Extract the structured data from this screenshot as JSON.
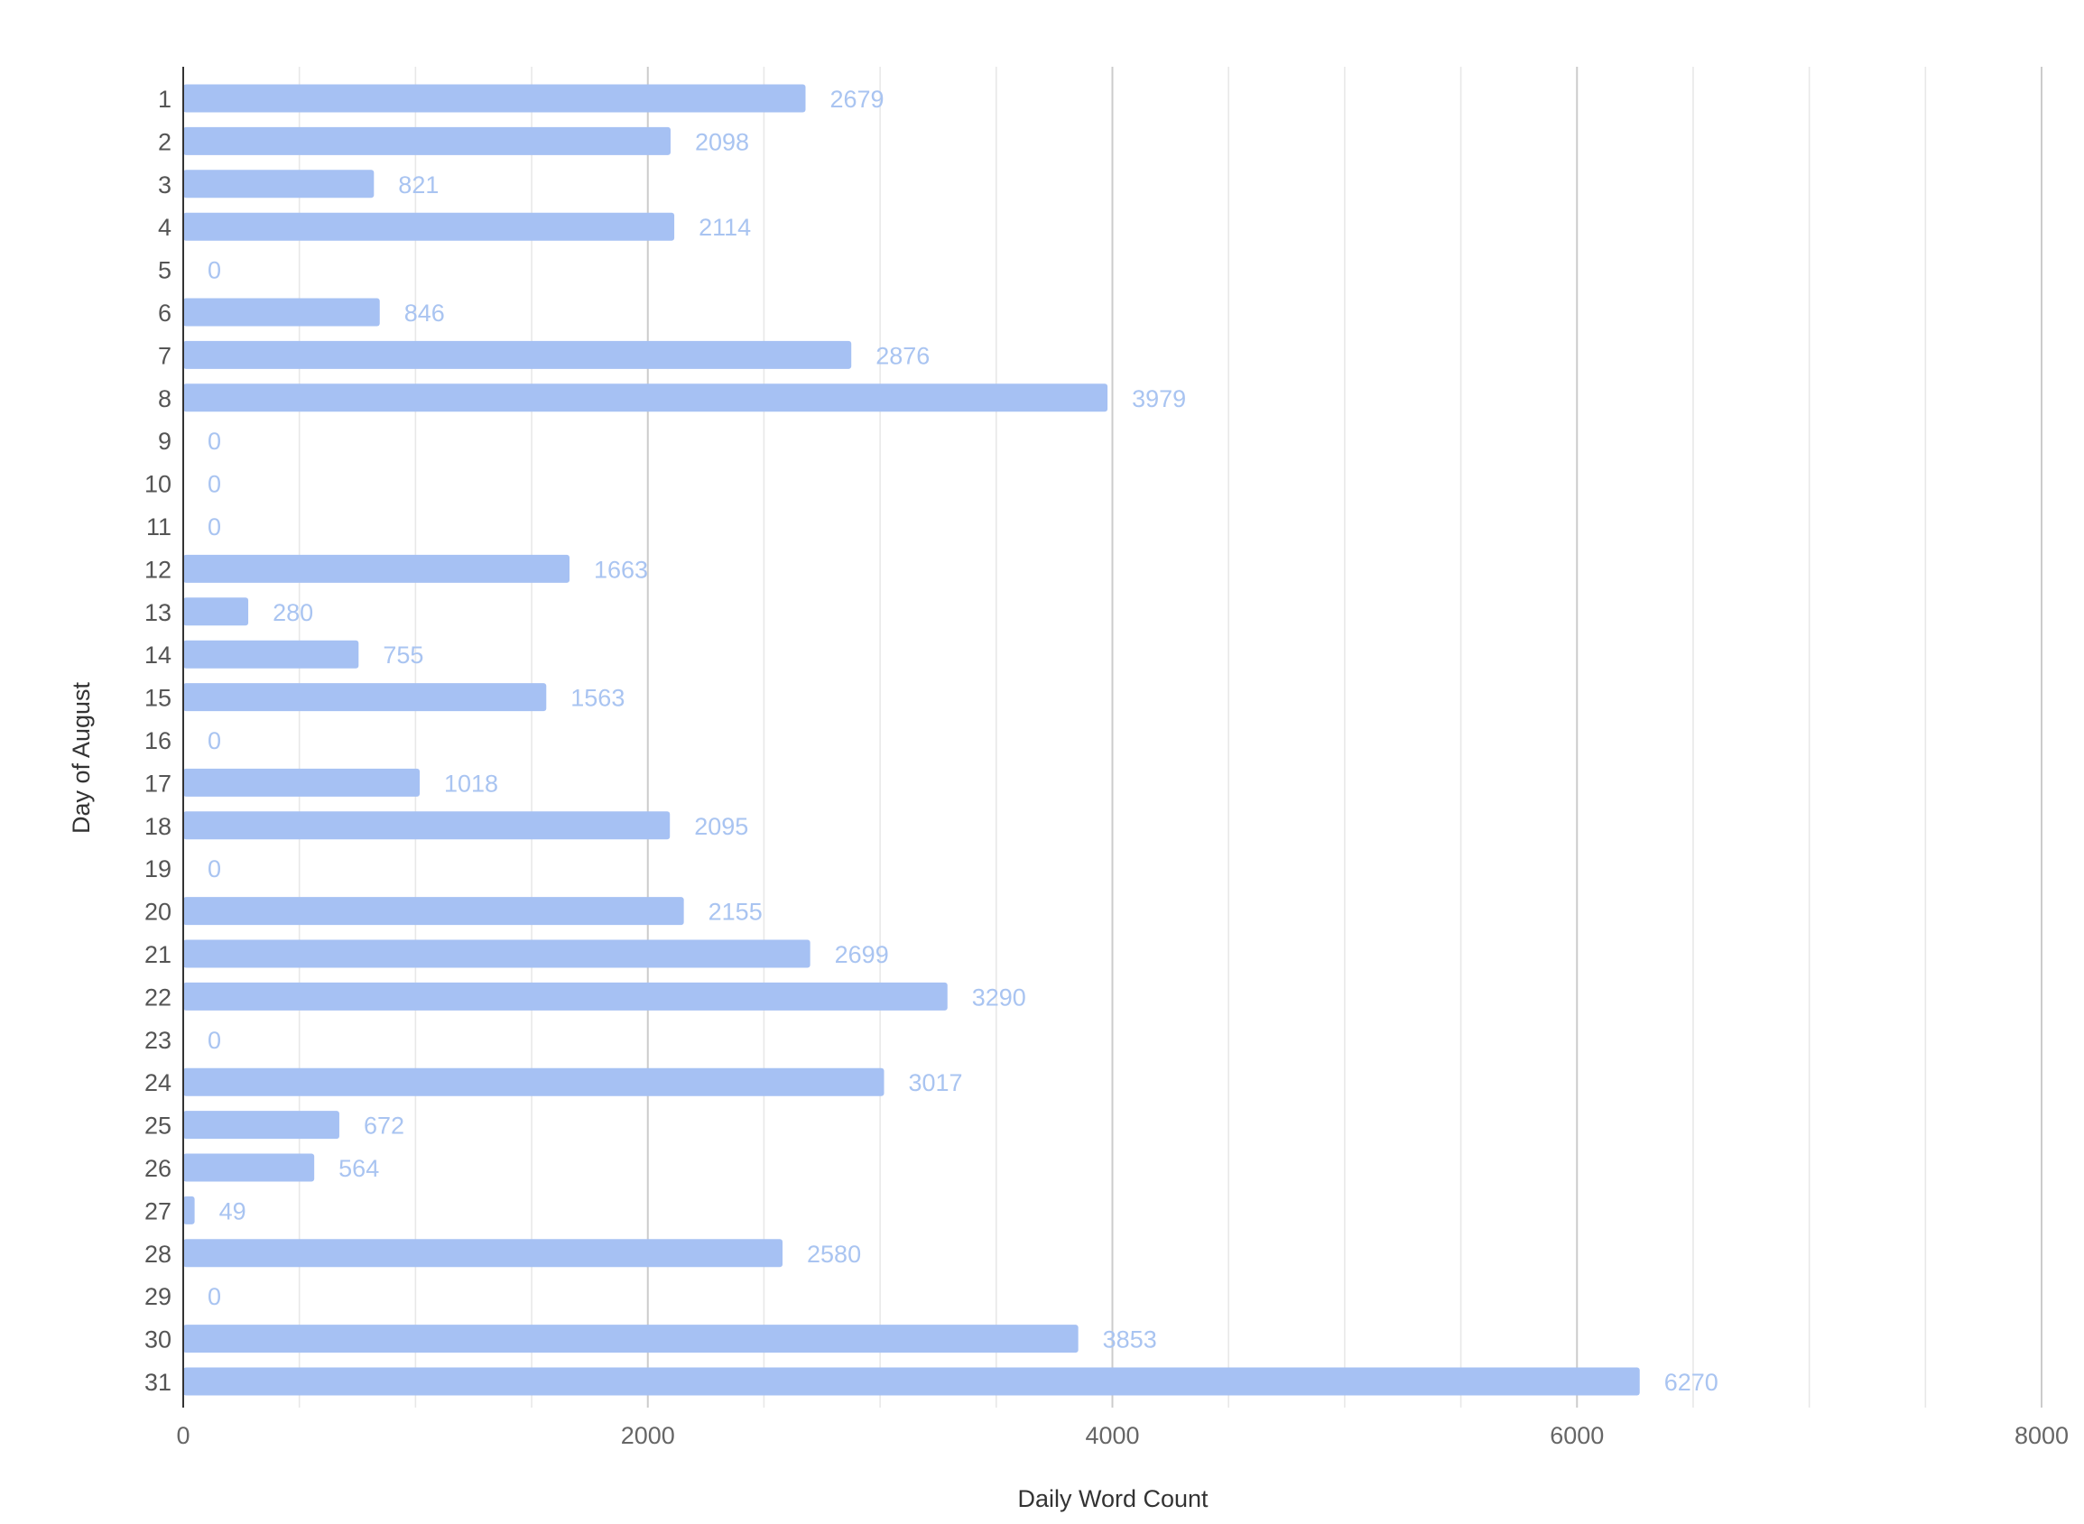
{
  "chart_data": {
    "type": "bar",
    "orientation": "horizontal",
    "xlabel": "Daily Word Count",
    "ylabel": "Day of August",
    "xlim": [
      0,
      8000
    ],
    "x_ticks": [
      0,
      2000,
      4000,
      6000,
      8000
    ],
    "x_tick_labels": [
      "0",
      "2000",
      "4000",
      "6000",
      "8000"
    ],
    "grid": true,
    "legend": "none",
    "categories": [
      "1",
      "2",
      "3",
      "4",
      "5",
      "6",
      "7",
      "8",
      "9",
      "10",
      "11",
      "12",
      "13",
      "14",
      "15",
      "16",
      "17",
      "18",
      "19",
      "20",
      "21",
      "22",
      "23",
      "24",
      "25",
      "26",
      "27",
      "28",
      "29",
      "30",
      "31"
    ],
    "values": [
      2679,
      2098,
      821,
      2114,
      0,
      846,
      2876,
      3979,
      0,
      0,
      0,
      1663,
      280,
      755,
      1563,
      0,
      1018,
      2095,
      0,
      2155,
      2699,
      3290,
      0,
      3017,
      672,
      564,
      49,
      2580,
      0,
      3853,
      6270
    ],
    "data_labels": [
      "2679",
      "2098",
      "821",
      "2114",
      "0",
      "846",
      "2876",
      "3979",
      "0",
      "0",
      "0",
      "1663",
      "280",
      "755",
      "1563",
      "0",
      "1018",
      "2095",
      "0",
      "2155",
      "2699",
      "3290",
      "0",
      "3017",
      "672",
      "564",
      "49",
      "2580",
      "0",
      "3853",
      "6270"
    ]
  },
  "colors": {
    "bar": "#a6c1f3",
    "data_label": "#a9c4f1",
    "major_grid": "#cccccc",
    "minor_grid": "#e8e8e8",
    "axis": "#333333"
  }
}
